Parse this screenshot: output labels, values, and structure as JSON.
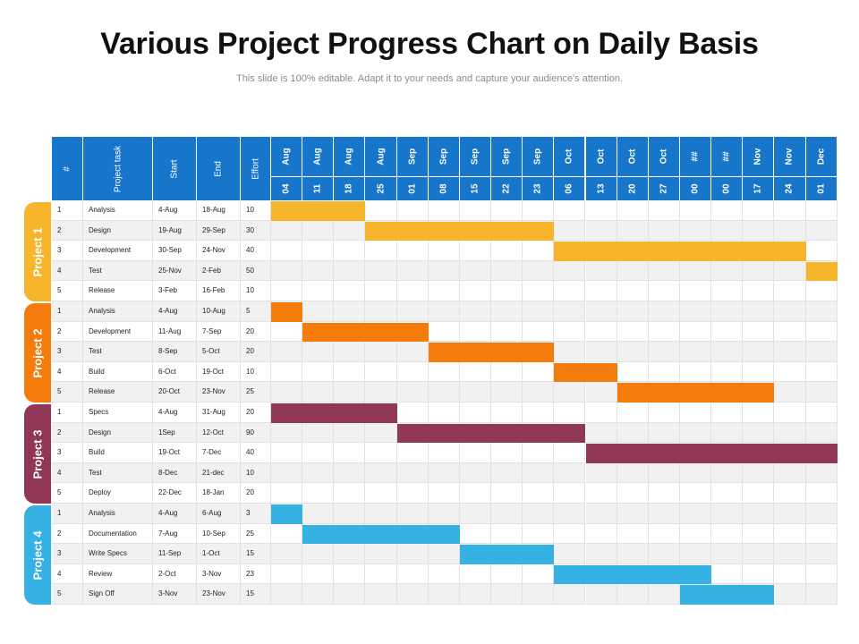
{
  "title": "Various Project Progress Chart on Daily Basis",
  "subtitle": "This slide is 100% editable. Adapt it to your needs and capture your audience's attention.",
  "columns": {
    "num": "#",
    "task": "Project task",
    "start": "Start",
    "end": "End",
    "effort": "Effort"
  },
  "chart_data": {
    "type": "gantt",
    "timeline": [
      {
        "month": "Aug",
        "day": "04"
      },
      {
        "month": "Aug",
        "day": "11"
      },
      {
        "month": "Aug",
        "day": "18"
      },
      {
        "month": "Aug",
        "day": "25"
      },
      {
        "month": "Sep",
        "day": "01"
      },
      {
        "month": "Sep",
        "day": "08"
      },
      {
        "month": "Sep",
        "day": "15"
      },
      {
        "month": "Sep",
        "day": "22"
      },
      {
        "month": "Sep",
        "day": "23"
      },
      {
        "month": "Oct",
        "day": "06"
      },
      {
        "month": "Oct",
        "day": "13"
      },
      {
        "month": "Oct",
        "day": "20"
      },
      {
        "month": "Oct",
        "day": "27"
      },
      {
        "month": "##",
        "day": "00"
      },
      {
        "month": "##",
        "day": "00"
      },
      {
        "month": "Nov",
        "day": "17"
      },
      {
        "month": "Nov",
        "day": "24"
      },
      {
        "month": "Dec",
        "day": "01"
      }
    ],
    "groups": [
      {
        "name": "Project 1",
        "color": "#f7b52c",
        "tasks": [
          {
            "num": "1",
            "task": "Analysis",
            "start": "4-Aug",
            "end": "18-Aug",
            "effort": "10",
            "bar_start": 0,
            "bar_end": 3
          },
          {
            "num": "2",
            "task": "Design",
            "start": "19-Aug",
            "end": "29-Sep",
            "effort": "30",
            "bar_start": 3,
            "bar_end": 9
          },
          {
            "num": "3",
            "task": "Development",
            "start": "30-Sep",
            "end": "24-Nov",
            "effort": "40",
            "bar_start": 9,
            "bar_end": 17
          },
          {
            "num": "4",
            "task": "Test",
            "start": "25-Nov",
            "end": "2-Feb",
            "effort": "50",
            "bar_start": 17,
            "bar_end": 18
          },
          {
            "num": "5",
            "task": "Release",
            "start": "3-Feb",
            "end": "16-Feb",
            "effort": "10",
            "bar_start": null,
            "bar_end": null
          }
        ]
      },
      {
        "name": "Project 2",
        "color": "#f47c0d",
        "tasks": [
          {
            "num": "1",
            "task": "Analysis",
            "start": "4-Aug",
            "end": "10-Aug",
            "effort": "5",
            "bar_start": 0,
            "bar_end": 1
          },
          {
            "num": "2",
            "task": "Development",
            "start": "11-Aug",
            "end": "7-Sep",
            "effort": "20",
            "bar_start": 1,
            "bar_end": 5
          },
          {
            "num": "3",
            "task": "Test",
            "start": "8-Sep",
            "end": "5-Oct",
            "effort": "20",
            "bar_start": 5,
            "bar_end": 9
          },
          {
            "num": "4",
            "task": "Build",
            "start": "6-Oct",
            "end": "19-Oct",
            "effort": "10",
            "bar_start": 9,
            "bar_end": 11
          },
          {
            "num": "5",
            "task": "Release",
            "start": "20-Oct",
            "end": "23-Nov",
            "effort": "25",
            "bar_start": 11,
            "bar_end": 16
          }
        ]
      },
      {
        "name": "Project 3",
        "color": "#903656",
        "tasks": [
          {
            "num": "1",
            "task": "Specs",
            "start": "4-Aug",
            "end": "31-Aug",
            "effort": "20",
            "bar_start": 0,
            "bar_end": 4
          },
          {
            "num": "2",
            "task": "Design",
            "start": "1Sep",
            "end": "12-Oct",
            "effort": "90",
            "bar_start": 4,
            "bar_end": 10
          },
          {
            "num": "3",
            "task": "Build",
            "start": "19-Oct",
            "end": "7-Dec",
            "effort": "40",
            "bar_start": 10,
            "bar_end": 18
          },
          {
            "num": "4",
            "task": "Test",
            "start": "8-Dec",
            "end": "21-dec",
            "effort": "10",
            "bar_start": null,
            "bar_end": null
          },
          {
            "num": "5",
            "task": "Deploy",
            "start": "22-Dec",
            "end": "18-Jan",
            "effort": "20",
            "bar_start": null,
            "bar_end": null
          }
        ]
      },
      {
        "name": "Project 4",
        "color": "#35b1e4",
        "tasks": [
          {
            "num": "1",
            "task": "Analysis",
            "start": "4-Aug",
            "end": "6-Aug",
            "effort": "3",
            "bar_start": 0,
            "bar_end": 1
          },
          {
            "num": "2",
            "task": "Documentation",
            "start": "7-Aug",
            "end": "10-Sep",
            "effort": "25",
            "bar_start": 1,
            "bar_end": 6
          },
          {
            "num": "3",
            "task": "Write Specs",
            "start": "11-Sep",
            "end": "1-Oct",
            "effort": "15",
            "bar_start": 6,
            "bar_end": 9
          },
          {
            "num": "4",
            "task": "Review",
            "start": "2-Oct",
            "end": "3-Nov",
            "effort": "23",
            "bar_start": 9,
            "bar_end": 14
          },
          {
            "num": "5",
            "task": "Sign Off",
            "start": "3-Nov",
            "end": "23-Nov",
            "effort": "15",
            "bar_start": 13,
            "bar_end": 16
          }
        ]
      }
    ]
  }
}
